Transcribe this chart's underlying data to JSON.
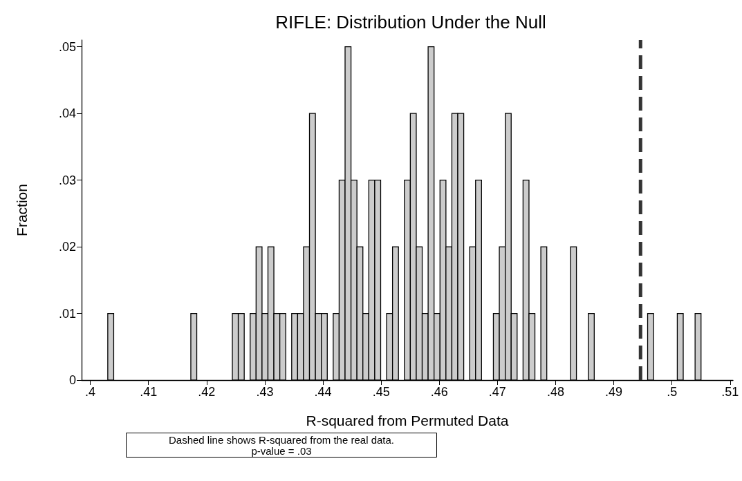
{
  "chart_data": {
    "type": "histogram",
    "title": "RIFLE: Distribution Under the Null",
    "xlabel": "R-squared from Permuted Data",
    "ylabel": "Fraction",
    "annotations": [
      "Dashed line shows R-squared from the real data.\np-value = .03"
    ],
    "bins": [
      0.403,
      0.40402,
      0.40504,
      0.40606,
      0.40708,
      0.4081,
      0.40912,
      0.41014,
      0.41116,
      0.41218,
      0.4132,
      0.41422,
      0.41524,
      0.41626,
      0.41728,
      0.4183,
      0.41932,
      0.42034,
      0.42136,
      0.42238,
      0.4234,
      0.42442,
      0.42544,
      0.42646,
      0.42748,
      0.4285,
      0.42952,
      0.43054,
      0.43156,
      0.43258,
      0.4336,
      0.43462,
      0.43564,
      0.43666,
      0.43768,
      0.4387,
      0.43972,
      0.44074,
      0.44176,
      0.44278,
      0.4438,
      0.44482,
      0.44584,
      0.44686,
      0.44788,
      0.4489,
      0.44992,
      0.45094,
      0.45196,
      0.45298,
      0.454,
      0.45502,
      0.45604,
      0.45706,
      0.45808,
      0.4591,
      0.46012,
      0.46114,
      0.46216,
      0.46318,
      0.4642,
      0.46522,
      0.46624,
      0.46726,
      0.46828,
      0.4693,
      0.47032,
      0.47134,
      0.47236,
      0.47338,
      0.4744,
      0.47542,
      0.47644,
      0.47746,
      0.47848,
      0.4795,
      0.48052,
      0.48154,
      0.48256,
      0.48358,
      0.4846,
      0.48562,
      0.48664,
      0.48766,
      0.48868,
      0.4897,
      0.49072,
      0.49174,
      0.49276,
      0.49378,
      0.4948,
      0.49582,
      0.49684,
      0.49786,
      0.49888,
      0.4999,
      0.50092,
      0.50194,
      0.50296,
      0.50398,
      0.505
    ],
    "values": [
      0.01,
      0,
      0,
      0,
      0,
      0,
      0,
      0,
      0,
      0,
      0,
      0,
      0,
      0,
      0.01,
      0,
      0,
      0,
      0,
      0,
      0,
      0.01,
      0.01,
      0,
      0.01,
      0.02,
      0.01,
      0.02,
      0.01,
      0.01,
      0,
      0.01,
      0.01,
      0.02,
      0.04,
      0.01,
      0.01,
      0,
      0.01,
      0.03,
      0.05,
      0.03,
      0.02,
      0.01,
      0.03,
      0.03,
      0,
      0.01,
      0.02,
      0,
      0.03,
      0.04,
      0.02,
      0.01,
      0.05,
      0.01,
      0.03,
      0.02,
      0.04,
      0.04,
      0,
      0.02,
      0.03,
      0,
      0,
      0.01,
      0.02,
      0.04,
      0.01,
      0,
      0.03,
      0.01,
      0,
      0.02,
      0,
      0,
      0,
      0,
      0.02,
      0,
      0,
      0.01,
      0,
      0,
      0,
      0,
      0,
      0,
      0,
      0,
      0,
      0.01,
      0,
      0,
      0,
      0,
      0.01,
      0,
      0,
      0.01
    ],
    "color": "#cccccc",
    "xlim": [
      0.3985,
      0.5105
    ],
    "xticks": [
      {
        "value": 0.4,
        "label": ".4"
      },
      {
        "value": 0.41,
        "label": ".41"
      },
      {
        "value": 0.42,
        "label": ".42"
      },
      {
        "value": 0.43,
        "label": ".43"
      },
      {
        "value": 0.44,
        "label": ".44"
      },
      {
        "value": 0.45,
        "label": ".45"
      },
      {
        "value": 0.46,
        "label": ".46"
      },
      {
        "value": 0.47,
        "label": ".47"
      },
      {
        "value": 0.48,
        "label": ".48"
      },
      {
        "value": 0.49,
        "label": ".49"
      },
      {
        "value": 0.5,
        "label": ".5"
      },
      {
        "value": 0.51,
        "label": ".51"
      }
    ],
    "ylim": [
      0,
      0.051
    ],
    "yticks": [
      0,
      {
        "value": 0.01,
        "label": ".01"
      },
      {
        "value": 0.02,
        "label": ".02"
      },
      {
        "value": 0.03,
        "label": ".03"
      },
      {
        "value": 0.04,
        "label": ".04"
      },
      {
        "value": 0.05,
        "label": ".05"
      }
    ],
    "ref_lines": [
      {
        "axis": "x",
        "value": 0.4946,
        "color": "#333333",
        "line_style": "dashed"
      }
    ],
    "grid": false,
    "legend": false
  }
}
